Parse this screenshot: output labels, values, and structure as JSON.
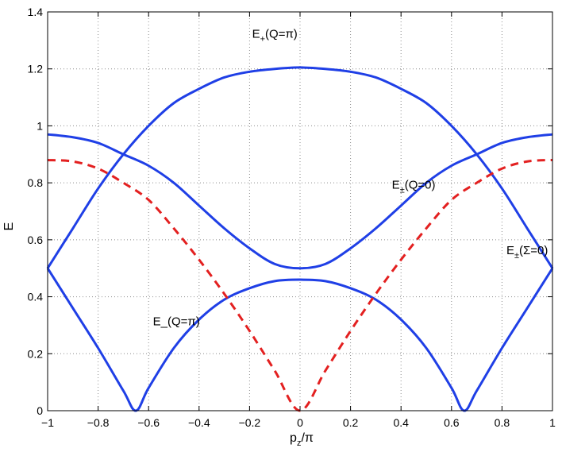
{
  "chart_data": {
    "type": "line",
    "title": "",
    "xlabel": {
      "main": "p",
      "sub": "z",
      "tail": "/π"
    },
    "ylabel": "E",
    "xlim": [
      -1,
      1
    ],
    "ylim": [
      0,
      1.4
    ],
    "grid": true,
    "x_ticks": [
      "−1",
      "−0.8",
      "−0.6",
      "−0.4",
      "−0.2",
      "0",
      "0.2",
      "0.4",
      "0.6",
      "0.8",
      "1"
    ],
    "y_ticks": [
      "0",
      "0.2",
      "0.4",
      "0.6",
      "0.8",
      "1",
      "1.2",
      "1.4"
    ],
    "colors": {
      "solid": "#1f3fe6",
      "dashed": "#e32020",
      "grid": "#8c8c8c"
    },
    "series": [
      {
        "style": "solid",
        "color": "#1f3fe6",
        "x": [
          -1,
          -0.9,
          -0.8,
          -0.7,
          -0.6,
          -0.5,
          -0.4,
          -0.3,
          -0.2,
          -0.1,
          0,
          0.1,
          0.2,
          0.3,
          0.4,
          0.5,
          0.6,
          0.7,
          0.8,
          0.9,
          1
        ],
        "y": [
          0.5,
          0.64,
          0.78,
          0.9,
          1.0,
          1.08,
          1.13,
          1.17,
          1.19,
          1.2,
          1.205,
          1.2,
          1.19,
          1.17,
          1.13,
          1.08,
          1.0,
          0.9,
          0.78,
          0.64,
          0.5
        ]
      },
      {
        "style": "solid",
        "color": "#1f3fe6",
        "x": [
          -1,
          -0.9,
          -0.8,
          -0.7,
          -0.6,
          -0.5,
          -0.4,
          -0.3,
          -0.2,
          -0.1,
          0,
          0.1,
          0.2,
          0.3,
          0.4,
          0.5,
          0.6,
          0.7,
          0.8,
          0.9,
          1
        ],
        "y": [
          0.97,
          0.96,
          0.94,
          0.9,
          0.86,
          0.8,
          0.72,
          0.64,
          0.57,
          0.515,
          0.5,
          0.515,
          0.57,
          0.64,
          0.72,
          0.8,
          0.86,
          0.9,
          0.94,
          0.96,
          0.97
        ]
      },
      {
        "style": "solid",
        "color": "#1f3fe6",
        "x": [
          -1,
          -0.9,
          -0.8,
          -0.7,
          -0.65,
          -0.6,
          -0.5,
          -0.4,
          -0.3,
          -0.2,
          -0.1,
          0,
          0.1,
          0.2,
          0.3,
          0.4,
          0.5,
          0.6,
          0.65,
          0.7,
          0.8,
          0.9,
          1
        ],
        "y": [
          0.5,
          0.36,
          0.22,
          0.07,
          0,
          0.08,
          0.22,
          0.32,
          0.39,
          0.43,
          0.455,
          0.46,
          0.455,
          0.43,
          0.39,
          0.32,
          0.22,
          0.08,
          0,
          0.07,
          0.22,
          0.36,
          0.5
        ]
      },
      {
        "style": "dashed",
        "color": "#e32020",
        "x": [
          -1,
          -0.9,
          -0.8,
          -0.7,
          -0.6,
          -0.5,
          -0.4,
          -0.3,
          -0.2,
          -0.1,
          0,
          0.1,
          0.2,
          0.3,
          0.4,
          0.5,
          0.6,
          0.7,
          0.8,
          0.9,
          1
        ],
        "y": [
          0.88,
          0.875,
          0.85,
          0.8,
          0.74,
          0.64,
          0.53,
          0.41,
          0.28,
          0.14,
          0,
          0.14,
          0.28,
          0.41,
          0.53,
          0.64,
          0.74,
          0.8,
          0.85,
          0.875,
          0.88
        ]
      }
    ],
    "annotations": [
      {
        "main": "E",
        "sub": "+",
        "tail": "(Q=π)",
        "x": -0.1,
        "y": 1.31
      },
      {
        "main": "E",
        "sub": "±",
        "tail": "(Q=0)",
        "x": 0.45,
        "y": 0.78
      },
      {
        "main": "E",
        "sub": "±",
        "tail": "(Σ=0)",
        "x": 0.9,
        "y": 0.55
      },
      {
        "main": "E",
        "sub": "",
        "tail": "_(Q=π)",
        "x": -0.49,
        "y": 0.3
      }
    ]
  }
}
